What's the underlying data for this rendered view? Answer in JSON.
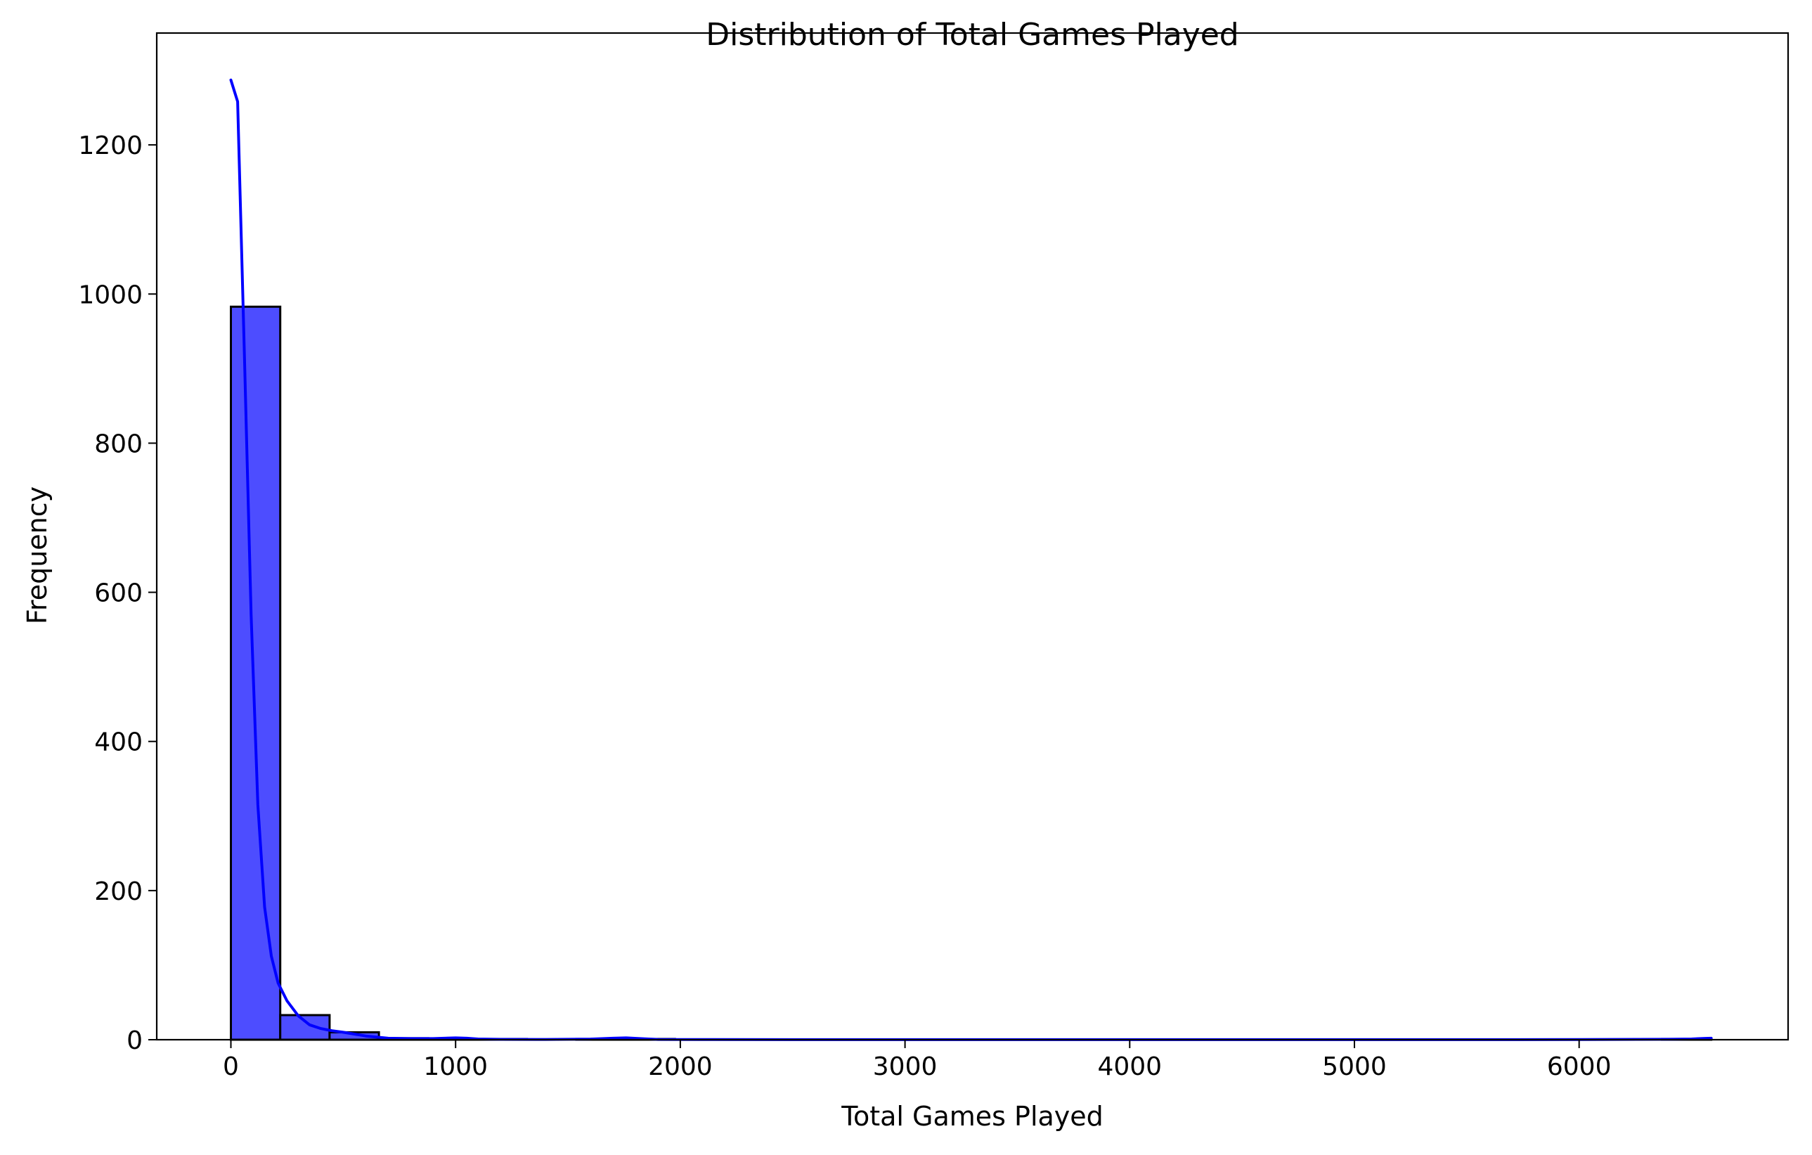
{
  "chart_data": {
    "type": "bar",
    "subtype": "histogram-with-kde",
    "title": "Distribution of Total Games Played",
    "xlabel": "Total Games Played",
    "ylabel": "Frequency",
    "xlim": [
      -330,
      6930
    ],
    "ylim": [
      0,
      1350
    ],
    "xticks": [
      0,
      1000,
      2000,
      3000,
      4000,
      5000,
      6000
    ],
    "yticks": [
      0,
      200,
      400,
      600,
      800,
      1000,
      1200
    ],
    "grid": false,
    "legend": null,
    "bar_color": "#4d4dff",
    "bar_edge_color": "#000000",
    "kde_color": "#0000ff",
    "bins": {
      "start": 0,
      "width": 219.6,
      "counts": [
        983,
        33,
        10,
        2,
        1,
        1,
        0,
        1,
        1,
        0,
        0,
        0,
        0,
        0,
        0,
        0,
        0,
        0,
        0,
        0,
        0,
        0,
        0,
        0,
        0,
        0,
        0,
        0,
        0,
        1
      ]
    },
    "kde": {
      "x": [
        0,
        30,
        60,
        90,
        120,
        150,
        180,
        210,
        250,
        300,
        350,
        400,
        450,
        500,
        600,
        700,
        800,
        900,
        1000,
        1050,
        1100,
        1200,
        1400,
        1600,
        1700,
        1760,
        1820,
        1900,
        2100,
        2500,
        3000,
        4000,
        5000,
        6000,
        6400,
        6500,
        6560,
        6588
      ],
      "y": [
        1287,
        1258,
        920,
        570,
        315,
        178,
        112,
        76,
        52,
        32,
        20,
        15,
        12,
        10,
        5,
        2,
        1.5,
        1.5,
        2.5,
        2,
        1,
        0.5,
        0.3,
        0.8,
        2,
        2.5,
        1.5,
        0.4,
        0.2,
        0.1,
        0.1,
        0.1,
        0.1,
        0.2,
        0.6,
        1.0,
        1.8,
        2.0
      ]
    }
  }
}
